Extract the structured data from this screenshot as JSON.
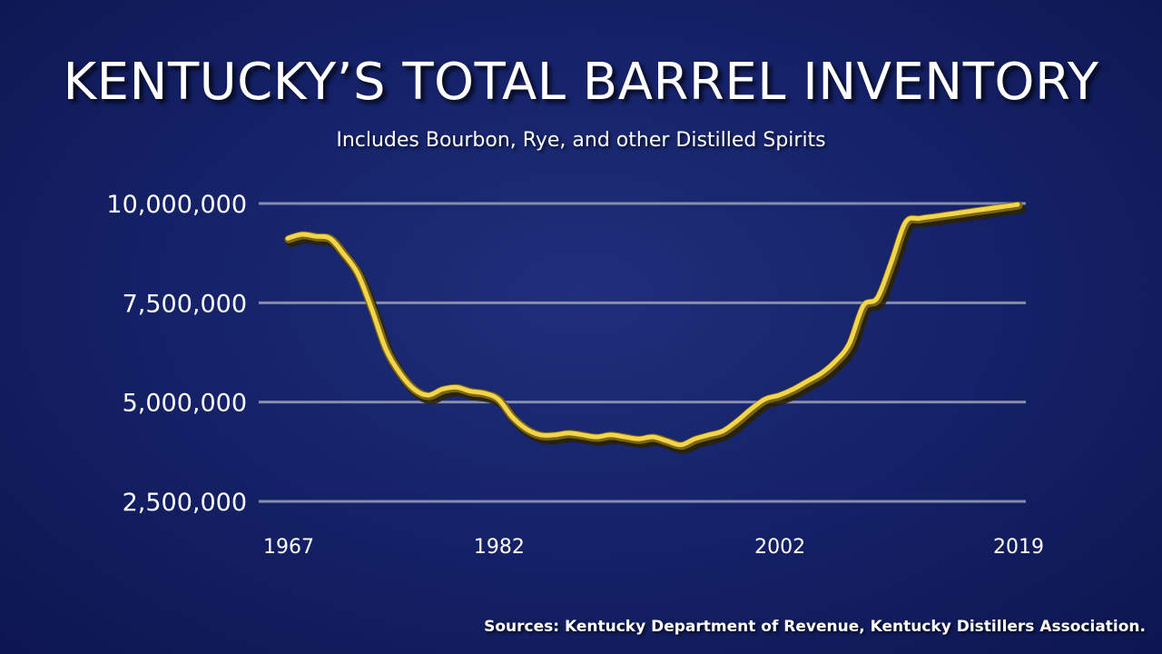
{
  "title": "KENTUCKY’S TOTAL BARREL INVENTORY",
  "subtitle": "Includes Bourbon, Rye, and other Distilled Spirits",
  "source": "Sources: Kentucky Department of Revenue, Kentucky Distillers Association.",
  "colors": {
    "background": "#16236a",
    "line": "#f2d54a",
    "line_shadow": "#2a2208",
    "grid": "#9aa0b8",
    "text": "#ffffff"
  },
  "chart_data": {
    "type": "line",
    "title": "KENTUCKY’S TOTAL BARREL INVENTORY",
    "subtitle": "Includes Bourbon, Rye, and other Distilled Spirits",
    "xlabel": "",
    "ylabel": "",
    "xlim": [
      1967,
      2019
    ],
    "ylim": [
      2500000,
      10000000
    ],
    "grid": true,
    "legend": "none",
    "y_ticks": [
      10000000,
      7500000,
      5000000,
      2500000
    ],
    "y_tick_labels": [
      "10,000,000",
      "7,500,000",
      "5,000,000",
      "2,500,000"
    ],
    "x_ticks": [
      1967,
      1982,
      2002,
      2019
    ],
    "x_tick_labels": [
      "1967",
      "1982",
      "2002",
      "2019"
    ],
    "series": [
      {
        "x": [
          1967,
          1968,
          1969,
          1970,
          1971,
          1972,
          1973,
          1974,
          1975,
          1976,
          1977,
          1978,
          1979,
          1980,
          1981,
          1982,
          1983,
          1984,
          1985,
          1986,
          1987,
          1988,
          1989,
          1990,
          1991,
          1992,
          1993,
          1994,
          1995,
          1996,
          1997,
          1998,
          1999,
          2000,
          2001,
          2002,
          2003,
          2004,
          2005,
          2006,
          2007,
          2008,
          2009,
          2010,
          2011,
          2012,
          2013,
          2014,
          2015,
          2016,
          2017,
          2018,
          2019
        ],
        "values": [
          9100000,
          9200000,
          9150000,
          9100000,
          8700000,
          8200000,
          7300000,
          6300000,
          5700000,
          5300000,
          5150000,
          5300000,
          5350000,
          5250000,
          5200000,
          5050000,
          4600000,
          4300000,
          4150000,
          4150000,
          4200000,
          4150000,
          4100000,
          4150000,
          4100000,
          4050000,
          4100000,
          4000000,
          3900000,
          4050000,
          4150000,
          4250000,
          4500000,
          4800000,
          5050000,
          5150000,
          5300000,
          5500000,
          5700000,
          6000000,
          6450000,
          7400000,
          7600000,
          8500000,
          9500000,
          9600000,
          9650000,
          9700000,
          9750000,
          9800000,
          9850000,
          9900000,
          9950000
        ]
      }
    ]
  }
}
